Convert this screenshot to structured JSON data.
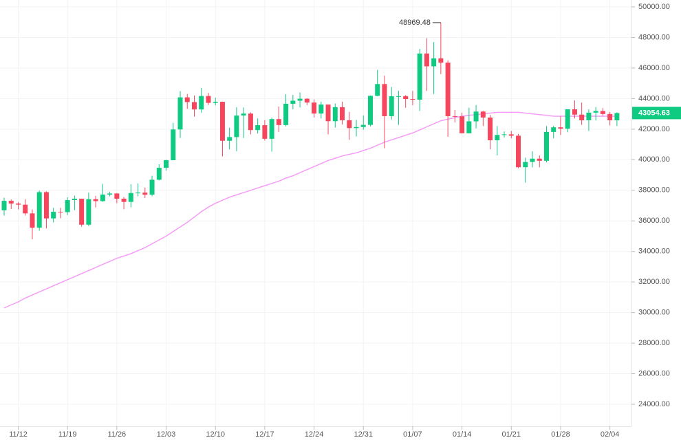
{
  "chart_data": {
    "type": "candlestick",
    "categories": [
      null,
      null,
      "11/12",
      null,
      null,
      null,
      null,
      null,
      null,
      "11/19",
      null,
      null,
      null,
      null,
      null,
      null,
      "11/26",
      null,
      null,
      null,
      null,
      null,
      null,
      "12/03",
      null,
      null,
      null,
      null,
      null,
      null,
      "12/10",
      null,
      null,
      null,
      null,
      null,
      null,
      "12/17",
      null,
      null,
      null,
      null,
      null,
      null,
      "12/24",
      null,
      null,
      null,
      null,
      null,
      null,
      "12/31",
      null,
      null,
      null,
      null,
      null,
      null,
      "01/07",
      null,
      null,
      null,
      null,
      null,
      null,
      "01/14",
      null,
      null,
      null,
      null,
      null,
      null,
      "01/21",
      null,
      null,
      null,
      null,
      null,
      null,
      "01/28",
      null,
      null,
      null,
      null,
      null,
      null,
      "02/04",
      null
    ],
    "open": [
      36690,
      37310,
      37130,
      37060,
      36490,
      35550,
      37880,
      36160,
      36590,
      36570,
      37360,
      37450,
      35750,
      37420,
      37290,
      37720,
      37790,
      37450,
      37240,
      37820,
      37850,
      37710,
      38690,
      39470,
      39970,
      41980,
      44080,
      43770,
      43290,
      44170,
      43720,
      43790,
      41240,
      41480,
      42890,
      43020,
      41940,
      42260,
      41370,
      42660,
      42270,
      43660,
      43860,
      43990,
      43740,
      43020,
      43610,
      42520,
      43440,
      42580,
      42070,
      42140,
      42280,
      44180,
      44950,
      42850,
      44150,
      44160,
      43970,
      43930,
      46950,
      46110,
      46630,
      46350,
      42850,
      42840,
      41730,
      42510,
      43150,
      42760,
      41270,
      41620,
      41660,
      41570,
      39510,
      39850,
      40070,
      39930,
      41820,
      42120,
      42030,
      43300,
      42950,
      42580,
      43080,
      43190,
      42990,
      42580
    ],
    "high": [
      37520,
      37400,
      37230,
      37420,
      36750,
      37980,
      37930,
      36850,
      36850,
      37540,
      37650,
      37450,
      37850,
      37640,
      38420,
      37900,
      37820,
      37560,
      38400,
      38450,
      38180,
      38950,
      39700,
      40000,
      42420,
      44490,
      44300,
      44200,
      44700,
      44370,
      44050,
      43800,
      42100,
      43430,
      43420,
      43090,
      42700,
      42590,
      42760,
      43480,
      44290,
      44240,
      44400,
      44020,
      43950,
      43800,
      43620,
      43680,
      43800,
      43130,
      42600,
      42900,
      44200,
      45880,
      45500,
      44750,
      44500,
      44230,
      44500,
      47250,
      47950,
      47700,
      48969.48,
      46500,
      43250,
      43080,
      43400,
      43580,
      43200,
      42930,
      42200,
      41850,
      41880,
      41690,
      40140,
      40550,
      40280,
      42200,
      42220,
      42840,
      43300,
      43880,
      43740,
      43300,
      43450,
      43380,
      43120,
      43100
    ],
    "low": [
      36340,
      36770,
      36750,
      36350,
      34800,
      35360,
      35500,
      35900,
      36170,
      36380,
      36700,
      35620,
      35660,
      36880,
      37250,
      37600,
      37150,
      36760,
      36880,
      37600,
      37500,
      37610,
      38650,
      39280,
      39970,
      41420,
      43330,
      42820,
      43080,
      43580,
      43560,
      40220,
      40680,
      40560,
      41420,
      41660,
      41720,
      41250,
      40530,
      41820,
      42180,
      43300,
      43420,
      43580,
      42760,
      42700,
      41660,
      42100,
      42300,
      41300,
      41520,
      41960,
      42180,
      44150,
      40750,
      42630,
      42280,
      43400,
      43570,
      43180,
      44500,
      44300,
      45600,
      41500,
      42440,
      41720,
      41720,
      42050,
      42200,
      40680,
      40280,
      41450,
      41400,
      39440,
      38500,
      39500,
      39500,
      39830,
      41400,
      41620,
      41800,
      42700,
      42280,
      41880,
      42570,
      42880,
      42250,
      42200
    ],
    "close": [
      37310,
      37130,
      37060,
      36490,
      35550,
      37880,
      36160,
      36590,
      36570,
      37360,
      37450,
      35750,
      37420,
      37290,
      37720,
      37790,
      37450,
      37240,
      37820,
      37850,
      37710,
      38690,
      39470,
      39970,
      41980,
      44080,
      43770,
      43290,
      44170,
      43720,
      43790,
      41240,
      41480,
      42890,
      43020,
      41940,
      42260,
      41370,
      42660,
      42270,
      43660,
      43860,
      43990,
      43740,
      43020,
      43610,
      42520,
      43440,
      42580,
      42070,
      42140,
      42280,
      44180,
      44950,
      42850,
      44150,
      44160,
      43970,
      43930,
      46950,
      46110,
      46630,
      46350,
      42850,
      42840,
      41730,
      42510,
      43150,
      42760,
      41270,
      41620,
      41660,
      41570,
      39510,
      39850,
      40070,
      39930,
      41820,
      42120,
      42030,
      43300,
      42950,
      42580,
      43080,
      43190,
      42990,
      42580,
      43054.63
    ],
    "up_color": "#0ecb81",
    "down_color": "#f6465d",
    "ma": {
      "color": "#f59cf7",
      "values": [
        30300,
        30500,
        30700,
        30950,
        31150,
        31350,
        31550,
        31750,
        31950,
        32150,
        32350,
        32550,
        32750,
        32950,
        33150,
        33350,
        33550,
        33700,
        33850,
        34050,
        34250,
        34500,
        34750,
        35000,
        35300,
        35600,
        35900,
        36250,
        36600,
        36900,
        37150,
        37350,
        37550,
        37700,
        37850,
        38000,
        38150,
        38300,
        38450,
        38600,
        38800,
        38950,
        39150,
        39350,
        39550,
        39750,
        39950,
        40100,
        40250,
        40350,
        40450,
        40600,
        40750,
        40950,
        41150,
        41300,
        41450,
        41600,
        41750,
        41950,
        42150,
        42350,
        42550,
        42650,
        42750,
        42850,
        42900,
        42950,
        43000,
        43050,
        43100,
        43100,
        43100,
        43100,
        43050,
        43000,
        42950,
        42900,
        42850,
        42850,
        42850,
        42850,
        42850,
        42850,
        42850,
        42850,
        42850,
        42850
      ]
    },
    "ylim": [
      21662,
      50450
    ],
    "yticks": [
      {
        "value": 24000,
        "label": "24000.00"
      },
      {
        "value": 26000,
        "label": "26000.00"
      },
      {
        "value": 28000,
        "label": "28000.00"
      },
      {
        "value": 30000,
        "label": "30000.00"
      },
      {
        "value": 32000,
        "label": "32000.00"
      },
      {
        "value": 34000,
        "label": "34000.00"
      },
      {
        "value": 36000,
        "label": "36000.00"
      },
      {
        "value": 38000,
        "label": "38000.00"
      },
      {
        "value": 40000,
        "label": "40000.00"
      },
      {
        "value": 42000,
        "label": "42000.00"
      },
      {
        "value": 44000,
        "label": "44000.00"
      },
      {
        "value": 46000,
        "label": "46000.00"
      },
      {
        "value": 48000,
        "label": "48000.00"
      },
      {
        "value": 50000,
        "label": "50000.00"
      }
    ],
    "grid": true
  }
}
